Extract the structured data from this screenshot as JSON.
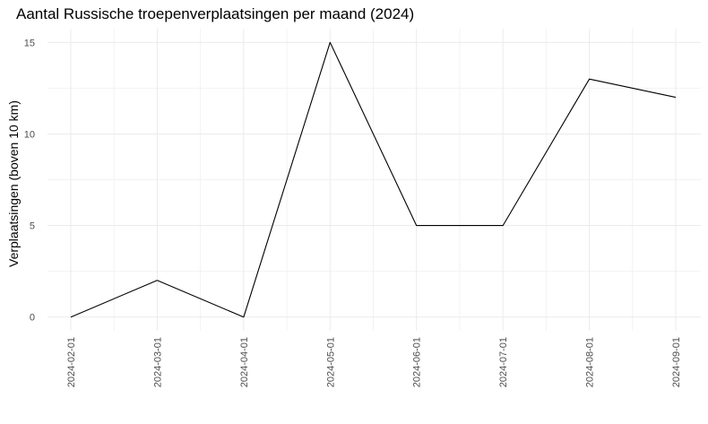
{
  "chart_data": {
    "type": "line",
    "title": "Aantal Russische troepenverplaatsingen per maand (2024)",
    "xlabel": "",
    "ylabel": "Verplaatsingen (boven 10 km)",
    "x": [
      "2024-02-01",
      "2024-03-01",
      "2024-04-01",
      "2024-05-01",
      "2024-06-01",
      "2024-07-01",
      "2024-08-01",
      "2024-09-01"
    ],
    "values": [
      0,
      2,
      0,
      15,
      5,
      5,
      13,
      12
    ],
    "yticks": [
      0,
      5,
      10,
      15
    ],
    "ylim": [
      -0.75,
      15.75
    ],
    "grid": true,
    "colors": {
      "line": "#000000",
      "grid_major": "#ebebeb",
      "grid_minor": "#f2f2f2",
      "text": "#4d4d4d"
    }
  }
}
